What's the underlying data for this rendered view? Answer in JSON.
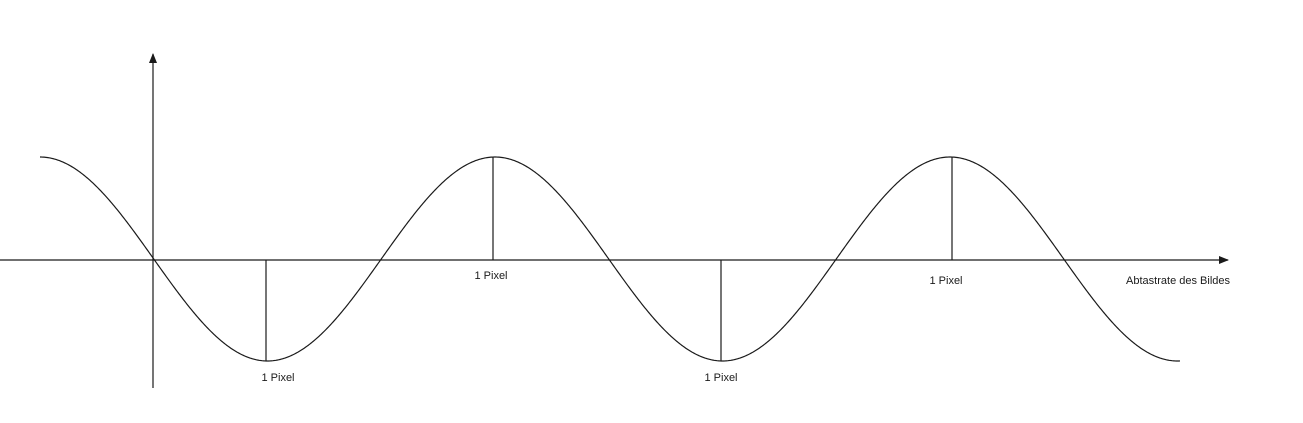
{
  "diagram": {
    "labels": {
      "pixel_1": "1 Pixel",
      "pixel_2": "1 Pixel",
      "pixel_3": "1 Pixel",
      "pixel_4": "1 Pixel",
      "axis_x": "Abtastrate des Bildes"
    },
    "colors": {
      "line": "#1a1a1a",
      "background": "#ffffff"
    }
  }
}
